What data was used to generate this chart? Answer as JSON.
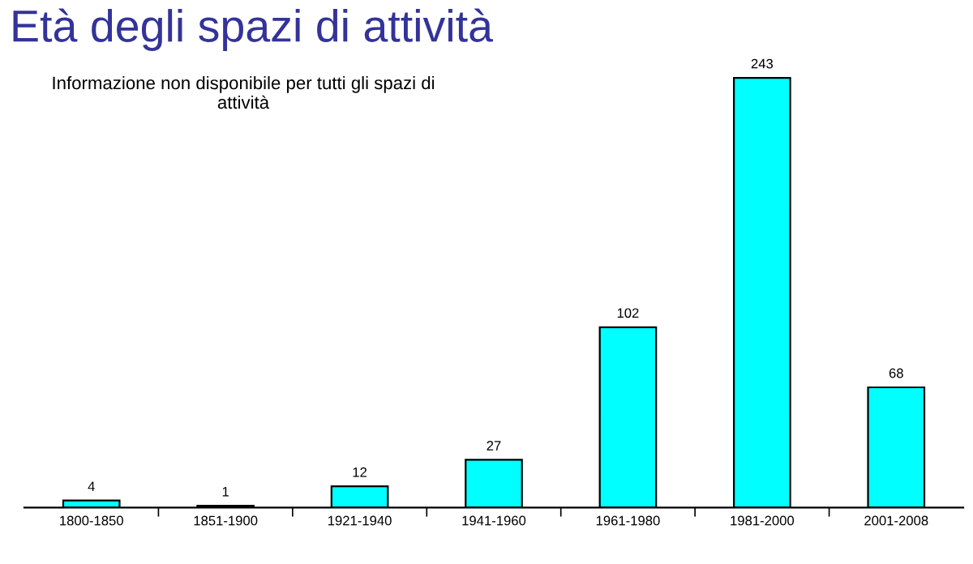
{
  "chart_data": {
    "type": "bar",
    "title": "Età degli spazi di attività",
    "subtitle": "Informazione non disponibile per tutti gli spazi di\nattività",
    "categories": [
      "1800-1850",
      "1851-1900",
      "1921-1940",
      "1941-1960",
      "1961-1980",
      "1981-2000",
      "2001-2008"
    ],
    "values": [
      4,
      1,
      12,
      27,
      102,
      243,
      68
    ],
    "color": "#00ffff",
    "data_labels": true,
    "grid": false,
    "legend": false
  }
}
